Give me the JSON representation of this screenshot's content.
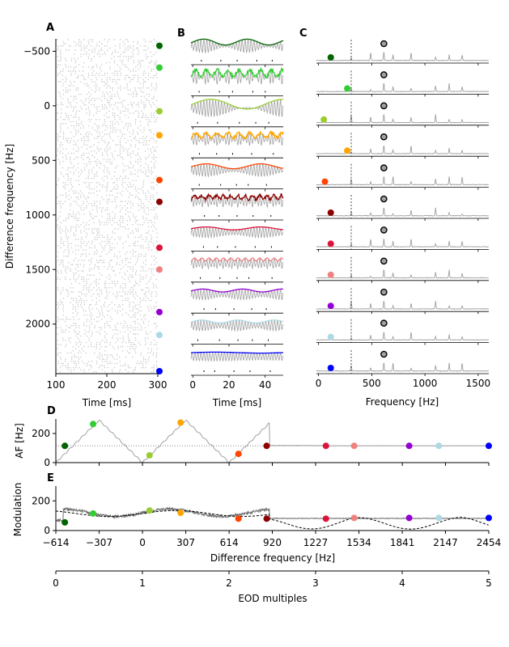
{
  "panel_labels": {
    "A": "A",
    "B": "B",
    "C": "C",
    "D": "D",
    "E": "E"
  },
  "colors": [
    "#006400",
    "#32cd32",
    "#9acd32",
    "#ffa500",
    "#ff4500",
    "#8b0000",
    "#dc143c",
    "#f08080",
    "#9400d3",
    "#add8e6",
    "#0000ff"
  ],
  "chart_data": [
    {
      "id": "A",
      "type": "scatter",
      "description": "raster of spike times vs difference frequency",
      "xlabel": "Time [ms]",
      "ylabel": "Difference frequency [Hz]",
      "xlim": [
        100,
        300
      ],
      "ylim": [
        -614,
        2454
      ],
      "y_inverted": true,
      "xticks": [
        100,
        200,
        300
      ],
      "yticks": [
        -500,
        0,
        500,
        1000,
        1500,
        2000
      ],
      "marker_df": [
        -550,
        -350,
        50,
        270,
        680,
        880,
        1300,
        1500,
        1890,
        2100,
        2480
      ]
    },
    {
      "id": "B",
      "type": "line",
      "xlabel": "Time [ms]",
      "xlim": [
        -1,
        50
      ],
      "xticks": [
        0,
        20,
        40
      ],
      "n_traces": 11
    },
    {
      "id": "C",
      "type": "line",
      "xlabel": "Frequency [Hz]",
      "xlim": [
        -20,
        1600
      ],
      "xticks": [
        0,
        500,
        1000,
        1500
      ],
      "eod_frequency": 614,
      "dashed_line_x": 307,
      "colored_marker_freq": [
        115,
        270,
        50,
        270,
        60,
        115,
        115,
        115,
        115,
        115,
        115
      ],
      "open_marker_freq": 614
    },
    {
      "id": "D",
      "type": "line",
      "ylabel": "AF [Hz]",
      "xlim": [
        -614,
        2454
      ],
      "ylim": [
        0,
        300
      ],
      "yticks": [
        0,
        200
      ],
      "baseline": 115,
      "points": [
        {
          "x": -550,
          "y": 115
        },
        {
          "x": -350,
          "y": 265
        },
        {
          "x": 50,
          "y": 50
        },
        {
          "x": 270,
          "y": 275
        },
        {
          "x": 680,
          "y": 60
        },
        {
          "x": 880,
          "y": 115
        },
        {
          "x": 1300,
          "y": 115
        },
        {
          "x": 1500,
          "y": 115
        },
        {
          "x": 1890,
          "y": 115
        },
        {
          "x": 2100,
          "y": 115
        },
        {
          "x": 2454,
          "y": 115
        }
      ]
    },
    {
      "id": "E",
      "type": "line",
      "ylabel": "Modulation",
      "xlabel": "Difference frequency [Hz]",
      "xlim": [
        -614,
        2454
      ],
      "ylim": [
        0,
        300
      ],
      "yticks": [
        0,
        200
      ],
      "xticks": [
        -614,
        -307,
        0,
        307,
        614,
        920,
        1227,
        1534,
        1841,
        2147,
        2454
      ],
      "xticklabels": [
        "−614",
        "−307",
        "0",
        "307",
        "614",
        "920",
        "1227",
        "1534",
        "1841",
        "2147",
        "2454"
      ],
      "points": [
        {
          "x": -550,
          "y": 55
        },
        {
          "x": -350,
          "y": 115
        },
        {
          "x": 50,
          "y": 135
        },
        {
          "x": 270,
          "y": 120
        },
        {
          "x": 680,
          "y": 80
        },
        {
          "x": 880,
          "y": 80
        },
        {
          "x": 1300,
          "y": 80
        },
        {
          "x": 1500,
          "y": 85
        },
        {
          "x": 1890,
          "y": 85
        },
        {
          "x": 2100,
          "y": 85
        },
        {
          "x": 2454,
          "y": 85
        }
      ]
    },
    {
      "id": "F",
      "type": "axis",
      "xlabel": "EOD multiples",
      "xlim": [
        0,
        5.0
      ],
      "xticks": [
        0,
        1,
        2,
        3,
        4,
        5
      ]
    }
  ]
}
